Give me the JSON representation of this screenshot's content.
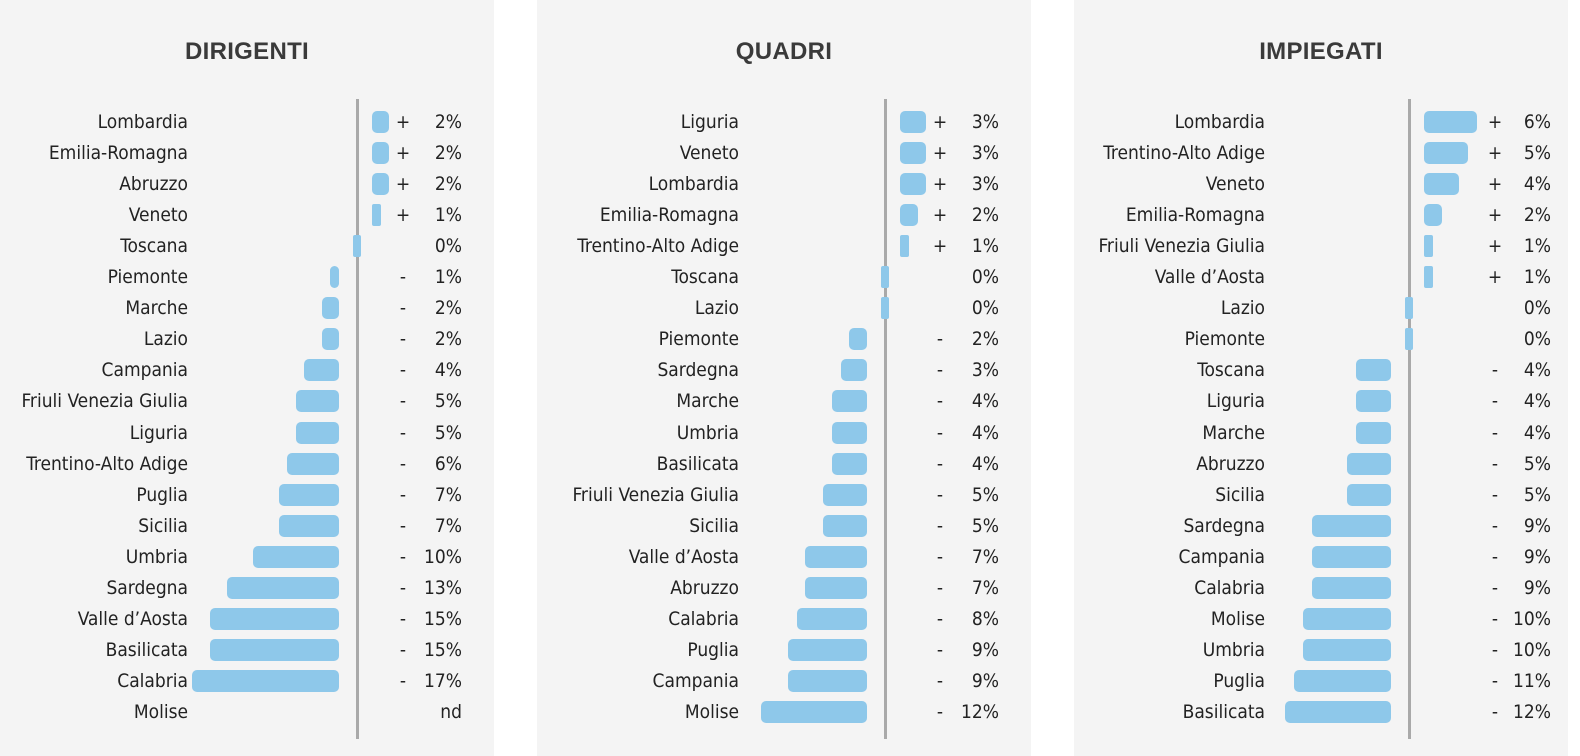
{
  "chart_data": [
    {
      "type": "bar",
      "title": "DIRIGENTI",
      "categories": [
        "Lombardia",
        "Emilia-Romagna",
        "Abruzzo",
        "Veneto",
        "Toscana",
        "Piemonte",
        "Marche",
        "Lazio",
        "Campania",
        "Friuli Venezia Giulia",
        "Liguria",
        "Trentino-Alto Adige",
        "Puglia",
        "Sicilia",
        "Umbria",
        "Sardegna",
        "Valle d’Aosta",
        "Basilicata",
        "Calabria",
        "Molise"
      ],
      "values": [
        2,
        2,
        2,
        1,
        0,
        -1,
        -2,
        -2,
        -4,
        -5,
        -5,
        -6,
        -7,
        -7,
        -10,
        -13,
        -15,
        -15,
        -17,
        null
      ],
      "value_labels": [
        {
          "sign": "+",
          "num": "2%"
        },
        {
          "sign": "+",
          "num": "2%"
        },
        {
          "sign": "+",
          "num": "2%"
        },
        {
          "sign": "+",
          "num": "1%"
        },
        {
          "sign": "",
          "num": "0%"
        },
        {
          "sign": "-",
          "num": "1%"
        },
        {
          "sign": "-",
          "num": "2%"
        },
        {
          "sign": "-",
          "num": "2%"
        },
        {
          "sign": "-",
          "num": "4%"
        },
        {
          "sign": "-",
          "num": "5%"
        },
        {
          "sign": "-",
          "num": "5%"
        },
        {
          "sign": "-",
          "num": "6%"
        },
        {
          "sign": "-",
          "num": "7%"
        },
        {
          "sign": "-",
          "num": "7%"
        },
        {
          "sign": "-",
          "num": "10%"
        },
        {
          "sign": "-",
          "num": "13%"
        },
        {
          "sign": "-",
          "num": "15%"
        },
        {
          "sign": "-",
          "num": "15%"
        },
        {
          "sign": "-",
          "num": "17%"
        },
        {
          "sign": "",
          "num": "nd"
        }
      ]
    },
    {
      "type": "bar",
      "title": "QUADRI",
      "categories": [
        "Liguria",
        "Veneto",
        "Lombardia",
        "Emilia-Romagna",
        "Trentino-Alto Adige",
        "Toscana",
        "Lazio",
        "Piemonte",
        "Sardegna",
        "Marche",
        "Umbria",
        "Basilicata",
        "Friuli Venezia Giulia",
        "Sicilia",
        "Valle d’Aosta",
        "Abruzzo",
        "Calabria",
        "Puglia",
        "Campania",
        "Molise"
      ],
      "values": [
        3,
        3,
        3,
        2,
        1,
        0,
        0,
        -2,
        -3,
        -4,
        -4,
        -4,
        -5,
        -5,
        -7,
        -7,
        -8,
        -9,
        -9,
        -12
      ],
      "value_labels": [
        {
          "sign": "+",
          "num": "3%"
        },
        {
          "sign": "+",
          "num": "3%"
        },
        {
          "sign": "+",
          "num": "3%"
        },
        {
          "sign": "+",
          "num": "2%"
        },
        {
          "sign": "+",
          "num": "1%"
        },
        {
          "sign": "",
          "num": "0%"
        },
        {
          "sign": "",
          "num": "0%"
        },
        {
          "sign": "-",
          "num": "2%"
        },
        {
          "sign": "-",
          "num": "3%"
        },
        {
          "sign": "-",
          "num": "4%"
        },
        {
          "sign": "-",
          "num": "4%"
        },
        {
          "sign": "-",
          "num": "4%"
        },
        {
          "sign": "-",
          "num": "5%"
        },
        {
          "sign": "-",
          "num": "5%"
        },
        {
          "sign": "-",
          "num": "7%"
        },
        {
          "sign": "-",
          "num": "7%"
        },
        {
          "sign": "-",
          "num": "8%"
        },
        {
          "sign": "-",
          "num": "9%"
        },
        {
          "sign": "-",
          "num": "9%"
        },
        {
          "sign": "-",
          "num": "12%"
        }
      ]
    },
    {
      "type": "bar",
      "title": "IMPIEGATI",
      "categories": [
        "Lombardia",
        "Trentino-Alto Adige",
        "Veneto",
        "Emilia-Romagna",
        "Friuli Venezia Giulia",
        "Valle d’Aosta",
        "Lazio",
        "Piemonte",
        "Toscana",
        "Liguria",
        "Marche",
        "Abruzzo",
        "Sicilia",
        "Sardegna",
        "Campania",
        "Calabria",
        "Molise",
        "Umbria",
        "Puglia",
        "Basilicata"
      ],
      "values": [
        6,
        5,
        4,
        2,
        1,
        1,
        0,
        0,
        -4,
        -4,
        -4,
        -5,
        -5,
        -9,
        -9,
        -9,
        -10,
        -10,
        -11,
        -12
      ],
      "value_labels": [
        {
          "sign": "+",
          "num": "6%"
        },
        {
          "sign": "+",
          "num": "5%"
        },
        {
          "sign": "+",
          "num": "4%"
        },
        {
          "sign": "+",
          "num": "2%"
        },
        {
          "sign": "+",
          "num": "1%"
        },
        {
          "sign": "+",
          "num": "1%"
        },
        {
          "sign": "",
          "num": "0%"
        },
        {
          "sign": "",
          "num": "0%"
        },
        {
          "sign": "-",
          "num": "4%"
        },
        {
          "sign": "-",
          "num": "4%"
        },
        {
          "sign": "-",
          "num": "4%"
        },
        {
          "sign": "-",
          "num": "5%"
        },
        {
          "sign": "-",
          "num": "5%"
        },
        {
          "sign": "-",
          "num": "9%"
        },
        {
          "sign": "-",
          "num": "9%"
        },
        {
          "sign": "-",
          "num": "9%"
        },
        {
          "sign": "-",
          "num": "10%"
        },
        {
          "sign": "-",
          "num": "10%"
        },
        {
          "sign": "-",
          "num": "11%"
        },
        {
          "sign": "-",
          "num": "12%"
        }
      ]
    }
  ],
  "colors": {
    "bar": "#8ec8ea",
    "axis": "#a9a9a9",
    "panel": "#f4f4f4",
    "text": "#222222"
  }
}
